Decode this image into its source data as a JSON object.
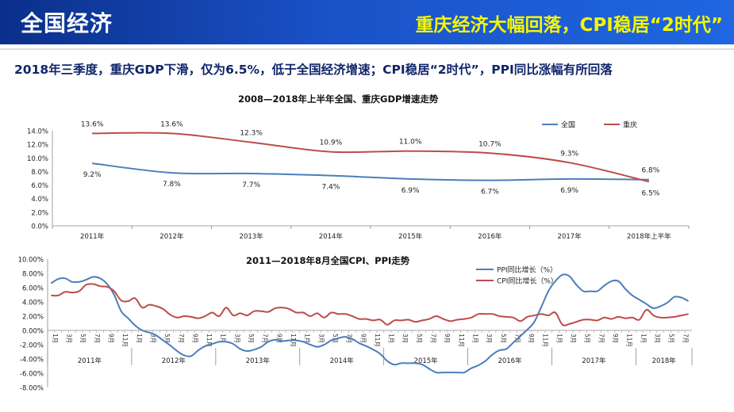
{
  "header": {
    "title": "全国经济",
    "headline": "重庆经济大幅回落，CPI稳居“2时代”"
  },
  "summary": "2018年三季度，重庆GDP下滑，仅为6.5%，低于全国经济增速；CPI稳居“2时代”，PPI同比涨幅有所回落",
  "colors": {
    "national": "#4a7ebb",
    "chongqing": "#be4b48",
    "ppi": "#4a7ebb",
    "cpi": "#be4b48",
    "banner": "#1a52c8",
    "headline": "#f6f600"
  },
  "chart_data": [
    {
      "type": "line",
      "title": "2008—2018年上半年全国、重庆GDP增速走势",
      "categories": [
        "2011年",
        "2012年",
        "2013年",
        "2014年",
        "2015年",
        "2016年",
        "2017年",
        "2018年上半年"
      ],
      "series": [
        {
          "name": "全国",
          "values": [
            9.2,
            7.8,
            7.7,
            7.4,
            6.9,
            6.7,
            6.9,
            6.8
          ],
          "labels": [
            "9.2%",
            "7.8%",
            "7.7%",
            "7.4%",
            "6.9%",
            "6.7%",
            "6.9%",
            "6.8%"
          ]
        },
        {
          "name": "重庆",
          "values": [
            13.6,
            13.6,
            12.3,
            10.9,
            11.0,
            10.7,
            9.3,
            6.5
          ],
          "labels": [
            "13.6%",
            "13.6%",
            "12.3%",
            "10.9%",
            "11.0%",
            "10.7%",
            "9.3%",
            "6.5%"
          ]
        }
      ],
      "ylim": [
        0,
        14
      ],
      "yticks": [
        "0.0%",
        "2.0%",
        "4.0%",
        "6.0%",
        "8.0%",
        "10.0%",
        "12.0%",
        "14.0%"
      ],
      "legend": "top-right"
    },
    {
      "type": "line",
      "title": "2011—2018年8月全国CPI、PPI走势",
      "x_period": "2011年1月—2018年8月",
      "month_ticks": [
        "1月",
        "3月",
        "5月",
        "7月",
        "9月",
        "11月"
      ],
      "years": [
        "2011年",
        "2012年",
        "2013年",
        "2014年",
        "2015年",
        "2016年",
        "2017年",
        "2018年"
      ],
      "series": [
        {
          "name": "PPI同比增长（%）",
          "values": [
            6.6,
            7.2,
            7.3,
            6.8,
            6.8,
            7.1,
            7.5,
            7.3,
            6.5,
            5.0,
            2.7,
            1.7,
            0.7,
            0.0,
            -0.3,
            -0.7,
            -1.4,
            -2.1,
            -2.9,
            -3.5,
            -3.6,
            -2.8,
            -2.2,
            -1.9,
            -1.6,
            -1.6,
            -1.9,
            -2.6,
            -2.9,
            -2.7,
            -2.3,
            -1.6,
            -1.3,
            -1.5,
            -1.4,
            -1.4,
            -1.6,
            -2.0,
            -2.3,
            -2.0,
            -1.4,
            -1.1,
            -0.9,
            -1.2,
            -1.8,
            -2.2,
            -2.7,
            -3.3,
            -4.3,
            -4.8,
            -4.6,
            -4.6,
            -4.6,
            -4.8,
            -5.4,
            -5.9,
            -5.9,
            -5.9,
            -5.9,
            -5.9,
            -5.3,
            -4.9,
            -4.3,
            -3.4,
            -2.8,
            -2.6,
            -1.7,
            -0.8,
            0.1,
            1.2,
            3.3,
            5.5,
            6.9,
            7.8,
            7.6,
            6.4,
            5.5,
            5.5,
            5.5,
            6.3,
            6.9,
            6.9,
            5.8,
            4.9,
            4.3,
            3.7,
            3.1,
            3.4,
            3.9,
            4.7,
            4.6,
            4.1
          ]
        },
        {
          "name": "CPI同比增长（%）",
          "values": [
            4.9,
            4.9,
            5.4,
            5.3,
            5.5,
            6.4,
            6.5,
            6.2,
            6.1,
            5.5,
            4.2,
            4.1,
            4.5,
            3.2,
            3.6,
            3.4,
            3.0,
            2.2,
            1.8,
            2.0,
            1.9,
            1.7,
            2.0,
            2.5,
            2.0,
            3.2,
            2.1,
            2.4,
            2.1,
            2.7,
            2.7,
            2.6,
            3.1,
            3.2,
            3.0,
            2.5,
            2.5,
            2.0,
            2.4,
            1.8,
            2.5,
            2.3,
            2.3,
            2.0,
            1.6,
            1.6,
            1.4,
            1.5,
            0.8,
            1.4,
            1.4,
            1.5,
            1.2,
            1.4,
            1.6,
            2.0,
            1.6,
            1.3,
            1.5,
            1.6,
            1.8,
            2.3,
            2.3,
            2.3,
            2.0,
            1.9,
            1.8,
            1.3,
            1.9,
            2.1,
            2.3,
            2.1,
            2.5,
            0.8,
            0.9,
            1.2,
            1.5,
            1.5,
            1.4,
            1.8,
            1.6,
            1.9,
            1.7,
            1.8,
            1.5,
            2.9,
            2.1,
            1.8,
            1.8,
            1.9,
            2.1,
            2.3
          ]
        }
      ],
      "ylim": [
        -8,
        10
      ],
      "yticks": [
        "-8.00%",
        "-6.00%",
        "-4.00%",
        "-2.00%",
        "0.00%",
        "2.00%",
        "4.00%",
        "6.00%",
        "8.00%",
        "10.00%"
      ],
      "legend": "top-right"
    }
  ]
}
